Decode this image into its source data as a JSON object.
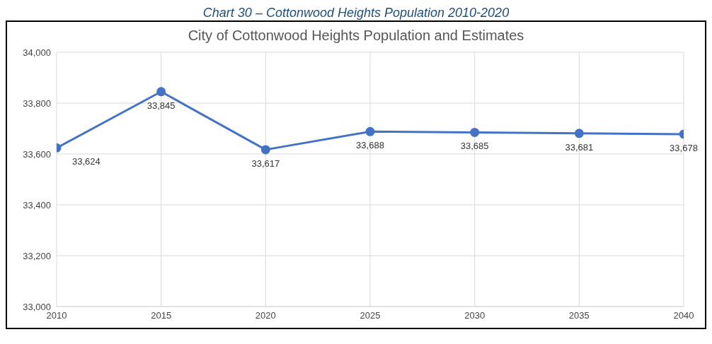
{
  "chart_data": {
    "type": "line",
    "title": "City of Cottonwood Heights Population and Estimates",
    "annotations": [
      "Chart 30 – Cottonwood Heights Population 2010-2020"
    ],
    "x": [
      2010,
      2015,
      2020,
      2025,
      2030,
      2035,
      2040
    ],
    "series": [
      {
        "color": "#4472c4",
        "values": [
          33624,
          33845,
          33617,
          33688,
          33685,
          33681,
          33678
        ],
        "value_labels": [
          "33,624",
          "33,845",
          "33,617",
          "33,688",
          "33,685",
          "33,681",
          "33,678"
        ]
      }
    ],
    "xlim": [
      2010,
      2040
    ],
    "xticks": [
      2010,
      2015,
      2020,
      2025,
      2030,
      2035,
      2040
    ],
    "ylim": [
      33000,
      34000
    ],
    "yticks": [
      {
        "value": 33000,
        "label": "33,000"
      },
      {
        "value": 33200,
        "label": "33,200"
      },
      {
        "value": 33400,
        "label": "33,400"
      },
      {
        "value": 33600,
        "label": "33,600"
      },
      {
        "value": 33800,
        "label": "33,800"
      },
      {
        "value": 34000,
        "label": "34,000"
      }
    ],
    "grid": true,
    "marker": "circle",
    "line_style": "solid"
  }
}
